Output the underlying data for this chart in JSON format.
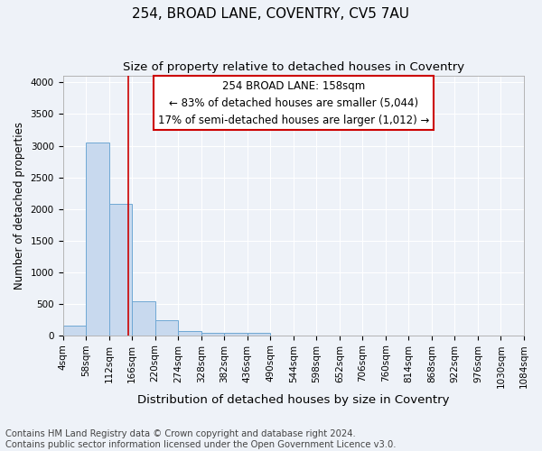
{
  "title": "254, BROAD LANE, COVENTRY, CV5 7AU",
  "subtitle": "Size of property relative to detached houses in Coventry",
  "xlabel": "Distribution of detached houses by size in Coventry",
  "ylabel": "Number of detached properties",
  "bin_edges": [
    4,
    58,
    112,
    166,
    220,
    274,
    328,
    382,
    436,
    490,
    544,
    598,
    652,
    706,
    760,
    814,
    868,
    922,
    976,
    1030,
    1084
  ],
  "bar_heights": [
    150,
    3050,
    2080,
    545,
    240,
    70,
    40,
    40,
    35,
    0,
    0,
    0,
    0,
    0,
    0,
    0,
    0,
    0,
    0,
    0
  ],
  "bar_color": "#c8d9ee",
  "bar_edge_color": "#6fa8d4",
  "reference_line_x": 158,
  "reference_line_color": "#cc0000",
  "annotation_line1": "254 BROAD LANE: 158sqm",
  "annotation_line2": "← 83% of detached houses are smaller (5,044)",
  "annotation_line3": "17% of semi-detached houses are larger (1,012) →",
  "ylim": [
    0,
    4100
  ],
  "yticks": [
    0,
    500,
    1000,
    1500,
    2000,
    2500,
    3000,
    3500,
    4000
  ],
  "background_color": "#eef2f8",
  "grid_color": "#ffffff",
  "footer_text": "Contains HM Land Registry data © Crown copyright and database right 2024.\nContains public sector information licensed under the Open Government Licence v3.0.",
  "title_fontsize": 11,
  "subtitle_fontsize": 9.5,
  "xlabel_fontsize": 9.5,
  "ylabel_fontsize": 8.5,
  "tick_fontsize": 7.5,
  "annotation_fontsize": 8.5,
  "footer_fontsize": 7.2
}
